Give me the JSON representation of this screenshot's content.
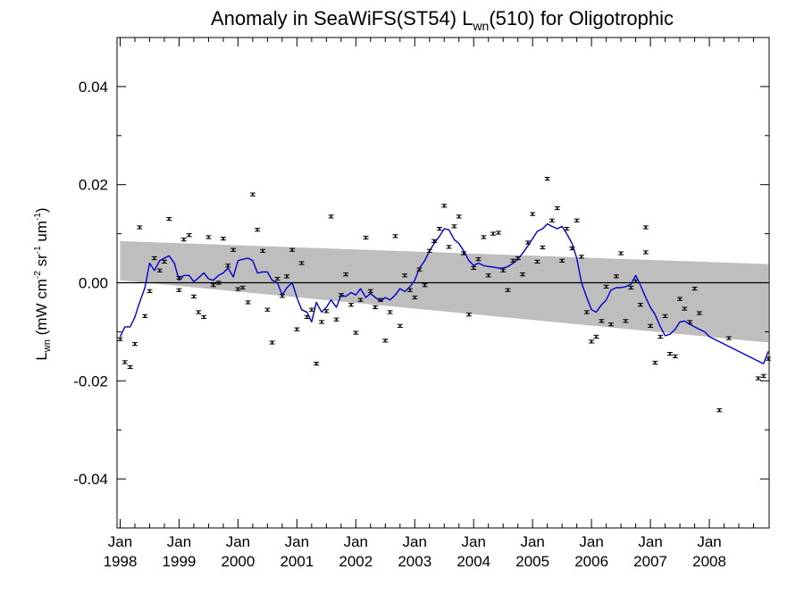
{
  "chart_data": {
    "type": "scatter",
    "title": {
      "prefix": "Anomaly in SeaWiFS(ST54) L",
      "subscript": "wn",
      "suffix": "(510) for Oligotrophic"
    },
    "ylabel": {
      "base": "L",
      "base_sub": "wn",
      "unit_prefix": " (mW cm",
      "sup1": "-2",
      "mid1": " sr",
      "sup2": "-1",
      "mid2": " um",
      "sup3": "-1",
      "unit_suffix": ")"
    },
    "xlabel": "",
    "x_domain": [
      1998.0,
      2009.0
    ],
    "ylim": [
      -0.05,
      0.05
    ],
    "y_ticks": [
      -0.04,
      -0.02,
      0.0,
      0.02,
      0.04
    ],
    "y_tick_labels": [
      "-0.04",
      "-0.02",
      "0.00",
      "0.02",
      "0.04"
    ],
    "x_ticks": [
      {
        "x": 1998.0,
        "month": "Jan",
        "year": "1998"
      },
      {
        "x": 1999.0,
        "month": "Jan",
        "year": "1999"
      },
      {
        "x": 2000.0,
        "month": "Jan",
        "year": "2000"
      },
      {
        "x": 2001.0,
        "month": "Jan",
        "year": "2001"
      },
      {
        "x": 2002.0,
        "month": "Jan",
        "year": "2002"
      },
      {
        "x": 2003.0,
        "month": "Jan",
        "year": "2003"
      },
      {
        "x": 2004.0,
        "month": "Jan",
        "year": "2004"
      },
      {
        "x": 2005.0,
        "month": "Jan",
        "year": "2005"
      },
      {
        "x": 2006.0,
        "month": "Jan",
        "year": "2006"
      },
      {
        "x": 2007.0,
        "month": "Jan",
        "year": "2007"
      },
      {
        "x": 2008.0,
        "month": "Jan",
        "year": "2008"
      }
    ],
    "confidence_band": {
      "x": [
        1998.0,
        2009.0
      ],
      "upper": [
        0.0085,
        0.0038
      ],
      "lower": [
        0.0005,
        -0.0122
      ],
      "color": "#bebebe"
    },
    "zero_line": 0.0,
    "colors": {
      "points": "#000000",
      "smooth": "#0000cc",
      "band": "#bebebe"
    },
    "points": [
      {
        "x": 1998.0,
        "y": -0.0115
      },
      {
        "x": 1998.08,
        "y": -0.0162
      },
      {
        "x": 1998.17,
        "y": -0.0172
      },
      {
        "x": 1998.25,
        "y": -0.0125
      },
      {
        "x": 1998.33,
        "y": 0.0113
      },
      {
        "x": 1998.42,
        "y": -0.0068
      },
      {
        "x": 1998.5,
        "y": -0.0017
      },
      {
        "x": 1998.58,
        "y": 0.005
      },
      {
        "x": 1998.67,
        "y": 0.0025
      },
      {
        "x": 1998.75,
        "y": 0.0043
      },
      {
        "x": 1998.83,
        "y": 0.013
      },
      {
        "x": 1999.0,
        "y": 0.001
      },
      {
        "x": 1999.0,
        "y": -0.0015
      },
      {
        "x": 1999.08,
        "y": 0.0088
      },
      {
        "x": 1999.17,
        "y": 0.0097
      },
      {
        "x": 1999.25,
        "y": -0.0028
      },
      {
        "x": 1999.33,
        "y": -0.006
      },
      {
        "x": 1999.42,
        "y": -0.007
      },
      {
        "x": 1999.5,
        "y": 0.0093
      },
      {
        "x": 1999.58,
        "y": -0.0005
      },
      {
        "x": 1999.67,
        "y": 0.0
      },
      {
        "x": 1999.75,
        "y": 0.009
      },
      {
        "x": 1999.83,
        "y": 0.0035
      },
      {
        "x": 1999.92,
        "y": 0.0067
      },
      {
        "x": 2000.0,
        "y": -0.0013
      },
      {
        "x": 2000.08,
        "y": -0.001
      },
      {
        "x": 2000.17,
        "y": -0.004
      },
      {
        "x": 2000.25,
        "y": 0.018
      },
      {
        "x": 2000.33,
        "y": 0.0108
      },
      {
        "x": 2000.42,
        "y": 0.0065
      },
      {
        "x": 2000.5,
        "y": -0.0055
      },
      {
        "x": 2000.58,
        "y": -0.0122
      },
      {
        "x": 2000.67,
        "y": 0.0008
      },
      {
        "x": 2000.75,
        "y": -0.0027
      },
      {
        "x": 2000.83,
        "y": 0.0013
      },
      {
        "x": 2000.92,
        "y": 0.0067
      },
      {
        "x": 2001.0,
        "y": -0.0095
      },
      {
        "x": 2001.08,
        "y": 0.004
      },
      {
        "x": 2001.17,
        "y": -0.007
      },
      {
        "x": 2001.25,
        "y": -0.0055
      },
      {
        "x": 2001.33,
        "y": -0.0165
      },
      {
        "x": 2001.42,
        "y": -0.008
      },
      {
        "x": 2001.5,
        "y": -0.0058
      },
      {
        "x": 2001.58,
        "y": 0.0135
      },
      {
        "x": 2001.67,
        "y": -0.0075
      },
      {
        "x": 2001.75,
        "y": -0.0025
      },
      {
        "x": 2001.83,
        "y": 0.0017
      },
      {
        "x": 2001.92,
        "y": -0.0045
      },
      {
        "x": 2002.0,
        "y": -0.0102
      },
      {
        "x": 2002.08,
        "y": -0.0035
      },
      {
        "x": 2002.17,
        "y": 0.0092
      },
      {
        "x": 2002.25,
        "y": -0.0017
      },
      {
        "x": 2002.33,
        "y": -0.005
      },
      {
        "x": 2002.42,
        "y": -0.0035
      },
      {
        "x": 2002.5,
        "y": -0.0118
      },
      {
        "x": 2002.58,
        "y": -0.006
      },
      {
        "x": 2002.67,
        "y": 0.0095
      },
      {
        "x": 2002.75,
        "y": -0.0088
      },
      {
        "x": 2002.83,
        "y": 0.0015
      },
      {
        "x": 2002.92,
        "y": -0.0015
      },
      {
        "x": 2003.0,
        "y": -0.003
      },
      {
        "x": 2003.08,
        "y": 0.0027
      },
      {
        "x": 2003.17,
        "y": -0.0005
      },
      {
        "x": 2003.25,
        "y": 0.0065
      },
      {
        "x": 2003.33,
        "y": 0.0085
      },
      {
        "x": 2003.42,
        "y": 0.011
      },
      {
        "x": 2003.5,
        "y": 0.0157
      },
      {
        "x": 2003.58,
        "y": 0.0073
      },
      {
        "x": 2003.67,
        "y": 0.0115
      },
      {
        "x": 2003.75,
        "y": 0.0135
      },
      {
        "x": 2003.83,
        "y": 0.006
      },
      {
        "x": 2003.92,
        "y": -0.0065
      },
      {
        "x": 2004.0,
        "y": 0.003
      },
      {
        "x": 2004.08,
        "y": 0.0048
      },
      {
        "x": 2004.17,
        "y": 0.0093
      },
      {
        "x": 2004.25,
        "y": 0.0015
      },
      {
        "x": 2004.33,
        "y": 0.01
      },
      {
        "x": 2004.42,
        "y": 0.0102
      },
      {
        "x": 2004.5,
        "y": 0.0025
      },
      {
        "x": 2004.58,
        "y": -0.0015
      },
      {
        "x": 2004.67,
        "y": 0.0045
      },
      {
        "x": 2004.75,
        "y": 0.005
      },
      {
        "x": 2004.83,
        "y": 0.0017
      },
      {
        "x": 2004.92,
        "y": 0.0082
      },
      {
        "x": 2005.0,
        "y": 0.014
      },
      {
        "x": 2005.08,
        "y": 0.0043
      },
      {
        "x": 2005.17,
        "y": 0.0072
      },
      {
        "x": 2005.25,
        "y": 0.0212
      },
      {
        "x": 2005.33,
        "y": 0.0127
      },
      {
        "x": 2005.42,
        "y": 0.0152
      },
      {
        "x": 2005.5,
        "y": 0.0045
      },
      {
        "x": 2005.58,
        "y": 0.011
      },
      {
        "x": 2005.67,
        "y": 0.007
      },
      {
        "x": 2005.75,
        "y": 0.0127
      },
      {
        "x": 2005.83,
        "y": 0.0053
      },
      {
        "x": 2005.92,
        "y": -0.006
      },
      {
        "x": 2006.0,
        "y": -0.012
      },
      {
        "x": 2006.08,
        "y": -0.011
      },
      {
        "x": 2006.17,
        "y": -0.0078
      },
      {
        "x": 2006.25,
        "y": -0.0008
      },
      {
        "x": 2006.33,
        "y": -0.0085
      },
      {
        "x": 2006.42,
        "y": 0.0013
      },
      {
        "x": 2006.5,
        "y": 0.006
      },
      {
        "x": 2006.58,
        "y": -0.0078
      },
      {
        "x": 2006.67,
        "y": -0.001
      },
      {
        "x": 2006.75,
        "y": 0.0003
      },
      {
        "x": 2006.83,
        "y": -0.0045
      },
      {
        "x": 2006.92,
        "y": 0.0062
      },
      {
        "x": 2006.92,
        "y": 0.0113
      },
      {
        "x": 2007.0,
        "y": -0.0088
      },
      {
        "x": 2007.08,
        "y": -0.0163
      },
      {
        "x": 2007.17,
        "y": -0.011
      },
      {
        "x": 2007.25,
        "y": -0.0068
      },
      {
        "x": 2007.33,
        "y": -0.0145
      },
      {
        "x": 2007.42,
        "y": -0.015
      },
      {
        "x": 2007.5,
        "y": -0.0033
      },
      {
        "x": 2007.58,
        "y": -0.0053
      },
      {
        "x": 2007.67,
        "y": -0.008
      },
      {
        "x": 2007.75,
        "y": -0.0012
      },
      {
        "x": 2007.83,
        "y": -0.0062
      },
      {
        "x": 2008.17,
        "y": -0.026
      },
      {
        "x": 2008.33,
        "y": -0.0113
      },
      {
        "x": 2008.83,
        "y": -0.0195
      },
      {
        "x": 2008.92,
        "y": -0.019
      },
      {
        "x": 2009.0,
        "y": -0.0155
      }
    ],
    "smooth_series": {
      "name": "",
      "x": [
        1998.0,
        1998.08,
        1998.17,
        1998.25,
        1998.33,
        1998.42,
        1998.5,
        1998.58,
        1998.67,
        1998.75,
        1998.83,
        1998.92,
        1999.0,
        1999.08,
        1999.17,
        1999.25,
        1999.33,
        1999.42,
        1999.5,
        1999.58,
        1999.67,
        1999.75,
        1999.83,
        1999.92,
        2000.0,
        2000.08,
        2000.17,
        2000.25,
        2000.33,
        2000.42,
        2000.5,
        2000.58,
        2000.67,
        2000.75,
        2000.83,
        2000.92,
        2001.0,
        2001.08,
        2001.17,
        2001.25,
        2001.33,
        2001.42,
        2001.5,
        2001.58,
        2001.67,
        2001.75,
        2001.83,
        2001.92,
        2002.0,
        2002.08,
        2002.17,
        2002.25,
        2002.33,
        2002.42,
        2002.5,
        2002.58,
        2002.67,
        2002.75,
        2002.83,
        2002.92,
        2003.0,
        2003.08,
        2003.17,
        2003.25,
        2003.33,
        2003.42,
        2003.5,
        2003.58,
        2003.67,
        2003.75,
        2003.83,
        2003.92,
        2004.0,
        2004.08,
        2004.17,
        2004.25,
        2004.33,
        2004.42,
        2004.5,
        2004.58,
        2004.67,
        2004.75,
        2004.83,
        2004.92,
        2005.0,
        2005.08,
        2005.17,
        2005.25,
        2005.33,
        2005.42,
        2005.5,
        2005.58,
        2005.67,
        2005.75,
        2005.83,
        2005.92,
        2006.0,
        2006.08,
        2006.17,
        2006.25,
        2006.33,
        2006.42,
        2006.5,
        2006.58,
        2006.67,
        2006.75,
        2006.83,
        2006.92,
        2007.0,
        2007.08,
        2007.17,
        2007.25,
        2007.33,
        2007.42,
        2007.5,
        2007.58,
        2007.67,
        2007.75,
        2007.83,
        2007.92,
        2008.0,
        2008.25,
        2008.5,
        2008.75,
        2008.92,
        2009.0
      ],
      "y": [
        -0.011,
        -0.009,
        -0.009,
        -0.007,
        -0.004,
        -0.001,
        0.004,
        0.0025,
        0.0045,
        0.005,
        0.0055,
        0.004,
        0.0005,
        0.0015,
        0.0015,
        0.0002,
        0.001,
        0.002,
        0.0008,
        0.0005,
        0.0015,
        0.002,
        0.003,
        0.0012,
        0.0045,
        0.0048,
        0.005,
        0.0045,
        0.002,
        0.0022,
        0.0022,
        0.0005,
        0.0,
        -0.0025,
        -0.001,
        0.0,
        -0.003,
        -0.0055,
        -0.006,
        -0.008,
        -0.004,
        -0.006,
        -0.005,
        -0.0035,
        -0.005,
        -0.0025,
        -0.0028,
        -0.002,
        -0.0025,
        -0.0012,
        -0.003,
        -0.0022,
        -0.003,
        -0.0038,
        -0.003,
        -0.0035,
        -0.0025,
        -0.0012,
        -0.0018,
        -0.0008,
        0.0005,
        0.003,
        0.0045,
        0.0065,
        0.008,
        0.0095,
        0.011,
        0.0108,
        0.0088,
        0.008,
        0.0065,
        0.0045,
        0.0035,
        0.004,
        0.0035,
        0.0033,
        0.0032,
        0.003,
        0.003,
        0.0033,
        0.004,
        0.0048,
        0.006,
        0.0075,
        0.009,
        0.0105,
        0.011,
        0.012,
        0.0115,
        0.011,
        0.0115,
        0.01,
        0.008,
        0.005,
        0.0,
        -0.003,
        -0.0055,
        -0.006,
        -0.0045,
        -0.0035,
        -0.0015,
        -0.001,
        -0.001,
        -0.0008,
        -0.0003,
        0.0015,
        -0.0005,
        -0.003,
        -0.005,
        -0.0065,
        -0.009,
        -0.0108,
        -0.0105,
        -0.0095,
        -0.008,
        -0.0078,
        -0.0085,
        -0.009,
        -0.0095,
        -0.01,
        -0.011,
        -0.0125,
        -0.014,
        -0.0155,
        -0.0165,
        -0.014
      ]
    }
  }
}
